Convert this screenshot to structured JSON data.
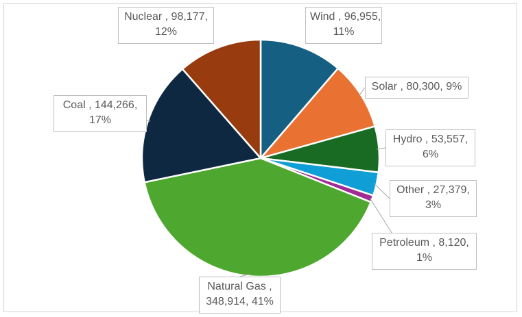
{
  "chart_data": {
    "type": "pie",
    "title": "",
    "slices": [
      {
        "label": "Wind",
        "label_text": "Wind ,",
        "value_text": "96,955,",
        "percent_text": "11%",
        "value": 96955,
        "percent": 11,
        "color": "#156082"
      },
      {
        "label": "Solar",
        "label_text": "Solar ,",
        "value_text": "80,300,",
        "percent_text": "9%",
        "value": 80300,
        "percent": 9,
        "color": "#E97132"
      },
      {
        "label": "Hydro",
        "label_text": "Hydro ,",
        "value_text": "53,557,",
        "percent_text": "6%",
        "value": 53557,
        "percent": 6,
        "color": "#196B24"
      },
      {
        "label": "Other",
        "label_text": "Other ,",
        "value_text": "27,379,",
        "percent_text": "3%",
        "value": 27379,
        "percent": 3,
        "color": "#0F9ED5"
      },
      {
        "label": "Petroleum",
        "label_text": "Petroleum ,",
        "value_text": "8,120,",
        "percent_text": "1%",
        "value": 8120,
        "percent": 1,
        "color": "#A02B93"
      },
      {
        "label": "Natural Gas",
        "label_text": "Natural Gas ,",
        "value_text": "348,914,",
        "percent_text": "41%",
        "value": 348914,
        "percent": 41,
        "color": "#4EA72E"
      },
      {
        "label": "Coal",
        "label_text": "Coal ,",
        "value_text": "144,266,",
        "percent_text": "17%",
        "value": 144266,
        "percent": 17,
        "color": "#0E2841"
      },
      {
        "label": "Nuclear",
        "label_text": "Nuclear ,",
        "value_text": "98,177,",
        "percent_text": "12%",
        "value": 98177,
        "percent": 12,
        "color": "#983B0F"
      }
    ]
  }
}
